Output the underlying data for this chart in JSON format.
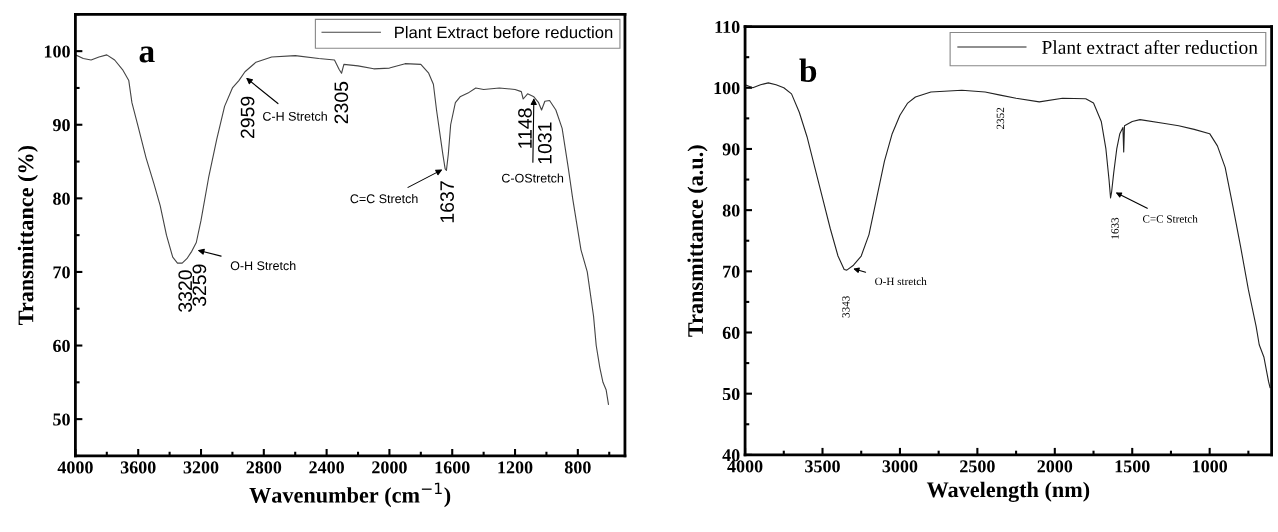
{
  "chart_data": [
    {
      "type": "line",
      "xlabel": "Wavenumber (cm$^{−1}$)",
      "ylabel": "Transmittance (%)",
      "xlim": [
        4000,
        500
      ],
      "ylim": [
        45,
        105
      ],
      "xticks": [
        4000,
        3600,
        3200,
        2800,
        2400,
        2000,
        1600,
        1200,
        800
      ],
      "yticks": [
        50,
        60,
        70,
        80,
        90,
        100
      ],
      "grid": false,
      "legend": "top right",
      "marker": "none",
      "line_style": "solid",
      "x": [
        4000,
        3950,
        3900,
        3850,
        3800,
        3750,
        3700,
        3660,
        3640,
        3600,
        3550,
        3500,
        3460,
        3420,
        3380,
        3350,
        3320,
        3290,
        3259,
        3230,
        3200,
        3150,
        3100,
        3050,
        3000,
        2959,
        2920,
        2850,
        2750,
        2600,
        2450,
        2350,
        2320,
        2305,
        2290,
        2200,
        2100,
        2000,
        1900,
        1800,
        1750,
        1720,
        1700,
        1680,
        1660,
        1645,
        1637,
        1625,
        1610,
        1580,
        1550,
        1500,
        1450,
        1400,
        1300,
        1200,
        1160,
        1148,
        1120,
        1080,
        1050,
        1031,
        1010,
        980,
        940,
        900,
        860,
        833,
        780,
        740,
        700,
        683,
        660,
        640,
        620,
        605
      ],
      "series": [
        {
          "name": "Plant Extract before reduction",
          "color": "#444444",
          "values": [
            99.5,
            99,
            98.8,
            99.2,
            99.5,
            98.8,
            97.5,
            96,
            93,
            89.7,
            85.5,
            82,
            79,
            75,
            72,
            71.2,
            71.2,
            71.8,
            72.8,
            74,
            77,
            83,
            88,
            92.5,
            95,
            96,
            97.2,
            98.5,
            99.2,
            99.4,
            99,
            98.8,
            97.5,
            97,
            98.2,
            98,
            97.6,
            97.7,
            98.3,
            98.2,
            97,
            95.5,
            92,
            89,
            86,
            84,
            83.8,
            86,
            90,
            93,
            93.8,
            94.3,
            95,
            94.8,
            95,
            94.8,
            94.5,
            93.5,
            94.2,
            93.8,
            93,
            92,
            93.2,
            93.3,
            92,
            89.5,
            84,
            80,
            73,
            70,
            64,
            60,
            57,
            55,
            54,
            52
          ]
        }
      ],
      "annotations": [
        "a",
        {
          "text": "3320",
          "x": 3320,
          "y": 71.2
        },
        {
          "text": "3259",
          "x": 3259,
          "y": 72.8
        },
        {
          "text": "O-H Stretch",
          "x": 3230,
          "y": 73
        },
        {
          "text": "2959",
          "x": 2959,
          "y": 96
        },
        {
          "text": "C-H Stretch",
          "x": 2920,
          "y": 96.5
        },
        {
          "text": "2305",
          "x": 2305,
          "y": 97
        },
        {
          "text": "C=C Stretch",
          "x": 1655,
          "y": 84
        },
        {
          "text": "1637",
          "x": 1637,
          "y": 83.8
        },
        {
          "text": "1148",
          "x": 1148,
          "y": 93.5
        },
        {
          "text": "1031",
          "x": 1031,
          "y": 92
        },
        {
          "text": "C-OStretch",
          "x": 1080,
          "y": 93.8
        }
      ]
    },
    {
      "type": "line",
      "xlabel": "Wavelength (nm)",
      "ylabel": "Transmittance (a.u.)",
      "xlim": [
        4000,
        600
      ],
      "ylim": [
        40,
        110
      ],
      "xticks": [
        4000,
        3500,
        3000,
        2500,
        2000,
        1500,
        1000
      ],
      "yticks": [
        40,
        50,
        60,
        70,
        80,
        90,
        100,
        110
      ],
      "grid": false,
      "legend": "top right",
      "marker": "none",
      "line_style": "solid",
      "x": [
        4000,
        3950,
        3900,
        3850,
        3800,
        3750,
        3700,
        3650,
        3600,
        3550,
        3500,
        3450,
        3400,
        3360,
        3343,
        3300,
        3250,
        3200,
        3150,
        3100,
        3050,
        3000,
        2950,
        2900,
        2800,
        2600,
        2450,
        2352,
        2250,
        2100,
        1950,
        1800,
        1750,
        1700,
        1670,
        1650,
        1640,
        1633,
        1620,
        1600,
        1580,
        1560,
        1555,
        1550,
        1500,
        1450,
        1300,
        1200,
        1100,
        1000,
        950,
        900,
        850,
        800,
        750,
        700,
        680,
        650,
        620,
        610
      ],
      "series": [
        {
          "name": "Plant extract after reduction",
          "color": "#222222",
          "values": [
            100.5,
            100,
            100.5,
            100.8,
            100.5,
            100,
            99,
            96,
            92,
            87,
            82,
            77,
            72.5,
            70.3,
            70.2,
            71,
            72.5,
            76,
            82,
            88,
            92.5,
            95.5,
            97.5,
            98.5,
            99.3,
            99.6,
            99.3,
            98.8,
            98.3,
            97.7,
            98.3,
            98.2,
            97.5,
            94.5,
            90,
            85,
            82,
            83,
            86,
            90,
            92.5,
            93.5,
            89.5,
            93.8,
            94.5,
            94.8,
            94.2,
            93.8,
            93.2,
            92.5,
            90.5,
            87,
            80.6,
            74,
            67,
            61,
            58,
            56,
            52,
            51
          ]
        }
      ],
      "annotations": [
        "b",
        {
          "text": "3343",
          "x": 3343,
          "y": 70.2
        },
        {
          "text": "O-H stretch",
          "x": 3310,
          "y": 70.5
        },
        {
          "text": "2352",
          "x": 2352,
          "y": 98.8
        },
        {
          "text": "1633",
          "x": 1633,
          "y": 83
        },
        {
          "text": "C=C Stretch",
          "x": 1615,
          "y": 83
        }
      ]
    }
  ]
}
